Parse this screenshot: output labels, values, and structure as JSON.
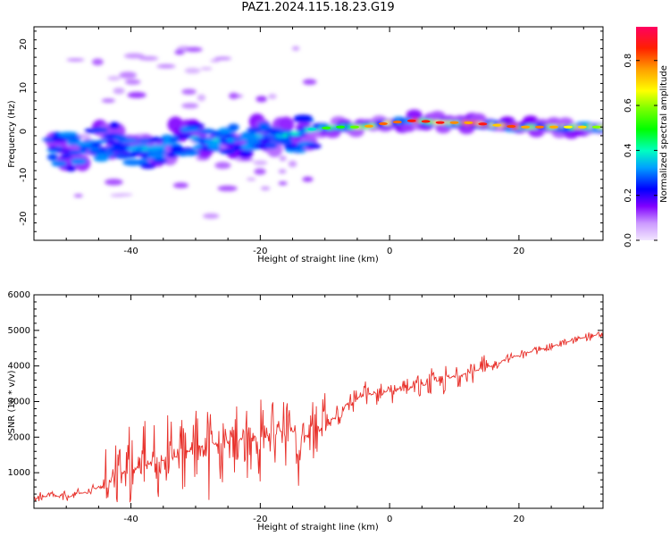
{
  "title": "PAZ1.2024.115.18.23.G19",
  "chart_data": [
    {
      "type": "heatmap",
      "xlabel": "Height of straight line (km)",
      "ylabel": "Frequency (Hz)",
      "xlim": [
        -55,
        33
      ],
      "ylim": [
        -25,
        24
      ],
      "x_ticks": [
        -40,
        -20,
        0,
        20
      ],
      "y_ticks": [
        20,
        10,
        0,
        -10,
        -20
      ],
      "grid": false,
      "colorbar": {
        "label": "Normalized spectral amplitude",
        "range": [
          0,
          0.95
        ],
        "ticks": [
          0.0,
          0.2,
          0.4,
          0.6,
          0.8
        ],
        "colormap": "gist_rainbow_r"
      },
      "ridge": {
        "x": [
          -52,
          -48,
          -44,
          -40,
          -36,
          -32,
          -28,
          -24,
          -20,
          -16,
          -12,
          -8,
          -4,
          0,
          4,
          8,
          12,
          16,
          20,
          24,
          28,
          33
        ],
        "y": [
          -4,
          -5,
          -2,
          -4,
          -4,
          -1,
          -2,
          -2,
          -1,
          -1,
          0.5,
          1,
          1,
          2,
          2.5,
          2,
          2,
          1.5,
          1,
          1,
          1,
          1
        ],
        "amplitude": [
          0.25,
          0.3,
          0.3,
          0.35,
          0.4,
          0.35,
          0.4,
          0.35,
          0.4,
          0.45,
          0.45,
          0.55,
          0.7,
          0.8,
          0.85,
          0.9,
          0.85,
          0.85,
          0.9,
          0.85,
          0.75,
          0.7
        ]
      }
    },
    {
      "type": "line",
      "xlabel": "Height of straight line (km)",
      "ylabel": "SNR (10 * v/v)",
      "xlim": [
        -55,
        33
      ],
      "ylim": [
        0,
        6000
      ],
      "x_ticks": [
        -40,
        -20,
        0,
        20
      ],
      "y_ticks": [
        1000,
        2000,
        3000,
        4000,
        5000,
        6000
      ],
      "grid": false,
      "color": "#e8312b",
      "x": [
        -55,
        -52,
        -50,
        -48,
        -46,
        -44,
        -42,
        -40,
        -38,
        -36,
        -34,
        -32,
        -30,
        -28,
        -26,
        -24,
        -22,
        -20,
        -18,
        -16,
        -14,
        -12,
        -10,
        -8,
        -6,
        -4,
        -2,
        0,
        2,
        4,
        6,
        8,
        10,
        12,
        14,
        16,
        18,
        20,
        22,
        24,
        26,
        28,
        30,
        33
      ],
      "y": [
        300,
        350,
        300,
        400,
        500,
        700,
        900,
        1100,
        1200,
        1300,
        1400,
        1500,
        1700,
        1800,
        1800,
        1900,
        2000,
        2000,
        2100,
        2200,
        2100,
        2000,
        2300,
        2700,
        3000,
        3200,
        3200,
        3300,
        3400,
        3400,
        3500,
        3600,
        3700,
        3800,
        3900,
        4000,
        4200,
        4300,
        4400,
        4500,
        4600,
        4700,
        4800,
        4900
      ]
    }
  ]
}
